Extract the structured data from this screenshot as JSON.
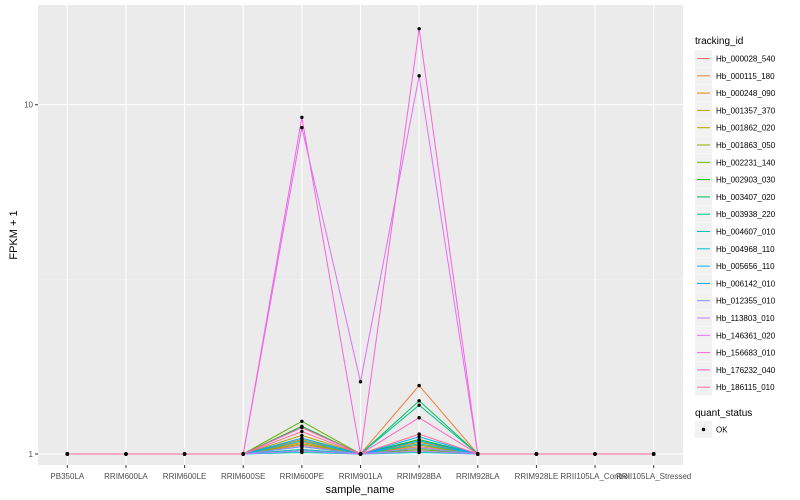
{
  "chart_data": {
    "type": "line",
    "title": "",
    "xlabel": "sample_name",
    "ylabel": "FPKM + 1",
    "y_scale": "log",
    "ylim": [
      0.93,
      19.3
    ],
    "y_ticks": [
      1,
      10
    ],
    "grid": true,
    "legend_position": "right",
    "categories": [
      "PB350LA",
      "RRIM600LA",
      "RRIM600LE",
      "RRIM600SE",
      "RRIM600PE",
      "RRIM901LA",
      "RRIM928BA",
      "RRIM928LA",
      "RRIM928LE",
      "RRII105LA_Control",
      "RRII105LA_Stressed"
    ],
    "legend_title": "tracking_id",
    "series": [
      {
        "name": "Hb_000028_540",
        "color": "#F8766D",
        "values": [
          1,
          1,
          1,
          1,
          1.06,
          1,
          1.05,
          1,
          1,
          1,
          1
        ]
      },
      {
        "name": "Hb_000115_180",
        "color": "#EC8239",
        "values": [
          1,
          1,
          1,
          1,
          1.03,
          1,
          1.57,
          1,
          1,
          1,
          1
        ]
      },
      {
        "name": "Hb_000248_090",
        "color": "#DB8E00",
        "values": [
          1,
          1,
          1,
          1,
          1.08,
          1,
          1.08,
          1,
          1,
          1,
          1
        ]
      },
      {
        "name": "Hb_001357_370",
        "color": "#C79800",
        "values": [
          1,
          1,
          1,
          1,
          1.1,
          1,
          1.04,
          1,
          1,
          1,
          1
        ]
      },
      {
        "name": "Hb_001862_020",
        "color": "#AEA200",
        "values": [
          1,
          1,
          1,
          1,
          1.13,
          1,
          1.02,
          1,
          1,
          1,
          1
        ]
      },
      {
        "name": "Hb_001863_050",
        "color": "#8FAA00",
        "values": [
          1,
          1,
          1,
          1,
          1.07,
          1,
          1.06,
          1,
          1,
          1,
          1
        ]
      },
      {
        "name": "Hb_002231_140",
        "color": "#64B200",
        "values": [
          1,
          1,
          1,
          1,
          1.24,
          1,
          1.03,
          1,
          1,
          1,
          1
        ]
      },
      {
        "name": "Hb_002903_030",
        "color": "#00B813",
        "values": [
          1,
          1,
          1,
          1,
          1.2,
          1,
          1.1,
          1,
          1,
          1,
          1
        ]
      },
      {
        "name": "Hb_003407_020",
        "color": "#00BD5C",
        "values": [
          1,
          1,
          1,
          1,
          1.02,
          1,
          1.42,
          1,
          1,
          1,
          1
        ]
      },
      {
        "name": "Hb_003938_220",
        "color": "#00C08E",
        "values": [
          1,
          1,
          1,
          1,
          1.05,
          1,
          1.38,
          1,
          1,
          1,
          1
        ]
      },
      {
        "name": "Hb_004607_010",
        "color": "#00C1B7",
        "values": [
          1,
          1,
          1,
          1,
          1.01,
          1,
          1.01,
          1,
          1,
          1,
          1
        ]
      },
      {
        "name": "Hb_004968_110",
        "color": "#00BDD4",
        "values": [
          1,
          1,
          1,
          1,
          1.03,
          1,
          1.07,
          1,
          1,
          1,
          1
        ]
      },
      {
        "name": "Hb_005656_110",
        "color": "#00B5EE",
        "values": [
          1,
          1,
          1,
          1,
          1.09,
          1,
          1.12,
          1,
          1,
          1,
          1
        ]
      },
      {
        "name": "Hb_006142_010",
        "color": "#00A7FF",
        "values": [
          1,
          1,
          1,
          1,
          1.11,
          1,
          1.09,
          1,
          1,
          1,
          1
        ]
      },
      {
        "name": "Hb_012355_010",
        "color": "#7F96FF",
        "values": [
          1,
          1,
          1,
          1,
          1.05,
          1,
          1.04,
          1,
          1,
          1,
          1
        ]
      },
      {
        "name": "Hb_113803_010",
        "color": "#BC81FF",
        "values": [
          1,
          1,
          1,
          1,
          1.02,
          1,
          1.02,
          1,
          1,
          1,
          1
        ]
      },
      {
        "name": "Hb_146361_020",
        "color": "#E26EF7",
        "values": [
          1,
          1,
          1,
          1,
          8.6,
          1.61,
          12.1,
          1,
          1,
          1,
          1
        ]
      },
      {
        "name": "Hb_156683_010",
        "color": "#F863DF",
        "values": [
          1,
          1,
          1,
          1,
          9.2,
          1,
          16.5,
          1,
          1,
          1,
          1
        ]
      },
      {
        "name": "Hb_176232_040",
        "color": "#FF62BF",
        "values": [
          1,
          1,
          1,
          1,
          1.19,
          1,
          1.27,
          1,
          1,
          1,
          1
        ]
      },
      {
        "name": "Hb_186115_010",
        "color": "#FF6A98",
        "values": [
          1,
          1,
          1,
          1,
          1.16,
          1,
          1.14,
          1,
          1,
          1,
          1
        ]
      }
    ],
    "legend2_title": "quant_status",
    "legend2_items": [
      "OK"
    ]
  }
}
